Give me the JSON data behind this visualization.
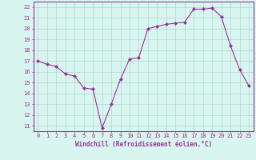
{
  "x": [
    0,
    1,
    2,
    3,
    4,
    5,
    6,
    7,
    8,
    9,
    10,
    11,
    12,
    13,
    14,
    15,
    16,
    17,
    18,
    19,
    20,
    21,
    22,
    23
  ],
  "y": [
    17.0,
    16.7,
    16.5,
    15.8,
    15.6,
    14.5,
    14.4,
    10.8,
    13.0,
    15.3,
    17.2,
    17.3,
    20.0,
    20.2,
    20.4,
    20.5,
    20.6,
    21.8,
    21.8,
    21.9,
    21.1,
    18.4,
    16.2,
    14.7
  ],
  "line_color": "#993399",
  "marker": "D",
  "marker_size": 2,
  "bg_color": "#d8f5f0",
  "grid_color": "#b0d8d0",
  "xlabel": "Windchill (Refroidissement éolien,°C)",
  "xlabel_color": "#993399",
  "tick_color": "#993399",
  "ylim_min": 10.5,
  "ylim_max": 22.5,
  "xlim_min": -0.5,
  "xlim_max": 23.5,
  "yticks": [
    11,
    12,
    13,
    14,
    15,
    16,
    17,
    18,
    19,
    20,
    21,
    22
  ],
  "xticks": [
    0,
    1,
    2,
    3,
    4,
    5,
    6,
    7,
    8,
    9,
    10,
    11,
    12,
    13,
    14,
    15,
    16,
    17,
    18,
    19,
    20,
    21,
    22,
    23
  ],
  "tick_fontsize": 5.0,
  "xlabel_fontsize": 5.5
}
